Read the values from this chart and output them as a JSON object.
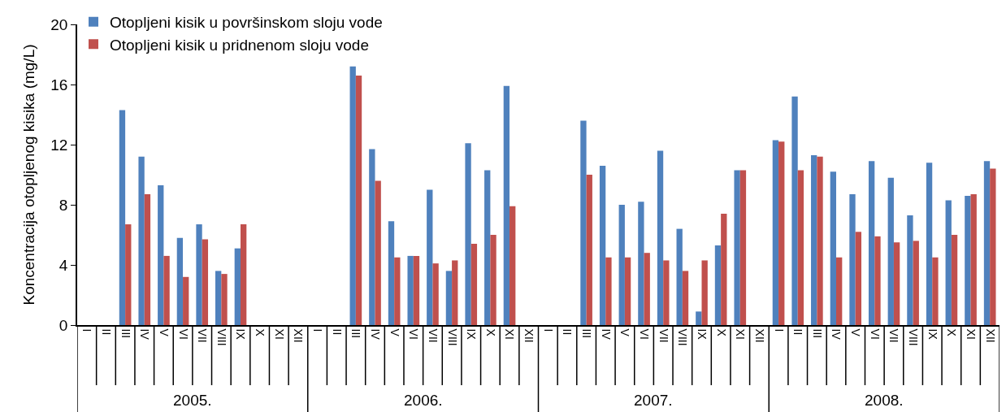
{
  "chart_data": {
    "type": "bar",
    "ylabel": "Koncentracija otopljenog kisika (mg/L)",
    "categories": [
      "I",
      "II",
      "III",
      "IV",
      "V",
      "VI",
      "VII",
      "VIII",
      "IX",
      "X",
      "XI",
      "XII",
      "I",
      "II",
      "III",
      "IV",
      "V",
      "VI",
      "VII",
      "VIII",
      "IX",
      "X",
      "XI",
      "XII",
      "I",
      "II",
      "III",
      "IV",
      "V",
      "VI",
      "VII",
      "VIII",
      "IX",
      "X",
      "XI",
      "XII",
      "I",
      "II",
      "III",
      "IV",
      "V",
      "VI",
      "VII",
      "VIII",
      "IX",
      "X",
      "XI",
      "XII"
    ],
    "annotations": [
      "2005.",
      "2006.",
      "2007.",
      "2008."
    ],
    "series": [
      {
        "name": "Otopljeni kisik u površinskom sloju vode",
        "color": "#4f81bd",
        "values": [
          null,
          null,
          14.3,
          11.2,
          9.3,
          5.8,
          6.7,
          3.6,
          5.1,
          null,
          null,
          null,
          null,
          null,
          17.2,
          11.7,
          6.9,
          4.6,
          9.0,
          3.6,
          12.1,
          10.3,
          15.9,
          null,
          null,
          null,
          13.6,
          10.6,
          8.0,
          8.2,
          11.6,
          6.4,
          0.9,
          5.3,
          10.3,
          null,
          12.3,
          15.2,
          11.3,
          10.2,
          8.7,
          10.9,
          9.8,
          7.3,
          10.8,
          8.3,
          8.6,
          10.9
        ]
      },
      {
        "name": "Otopljeni kisik u pridnenom sloju vode",
        "color": "#c0504d",
        "values": [
          null,
          null,
          6.7,
          8.7,
          4.6,
          3.2,
          5.7,
          3.4,
          6.7,
          null,
          null,
          null,
          null,
          null,
          16.6,
          9.6,
          4.5,
          4.6,
          4.1,
          4.3,
          5.4,
          6.0,
          7.9,
          null,
          null,
          null,
          10.0,
          4.5,
          4.5,
          4.8,
          4.3,
          3.6,
          4.3,
          7.4,
          10.3,
          null,
          12.2,
          10.3,
          11.2,
          4.5,
          6.2,
          5.9,
          5.5,
          5.6,
          4.5,
          6.0,
          8.7,
          10.4
        ]
      }
    ],
    "ylim": [
      0,
      20
    ],
    "yticks": [
      0,
      4,
      8,
      12,
      16,
      20
    ],
    "legend": "top left"
  }
}
